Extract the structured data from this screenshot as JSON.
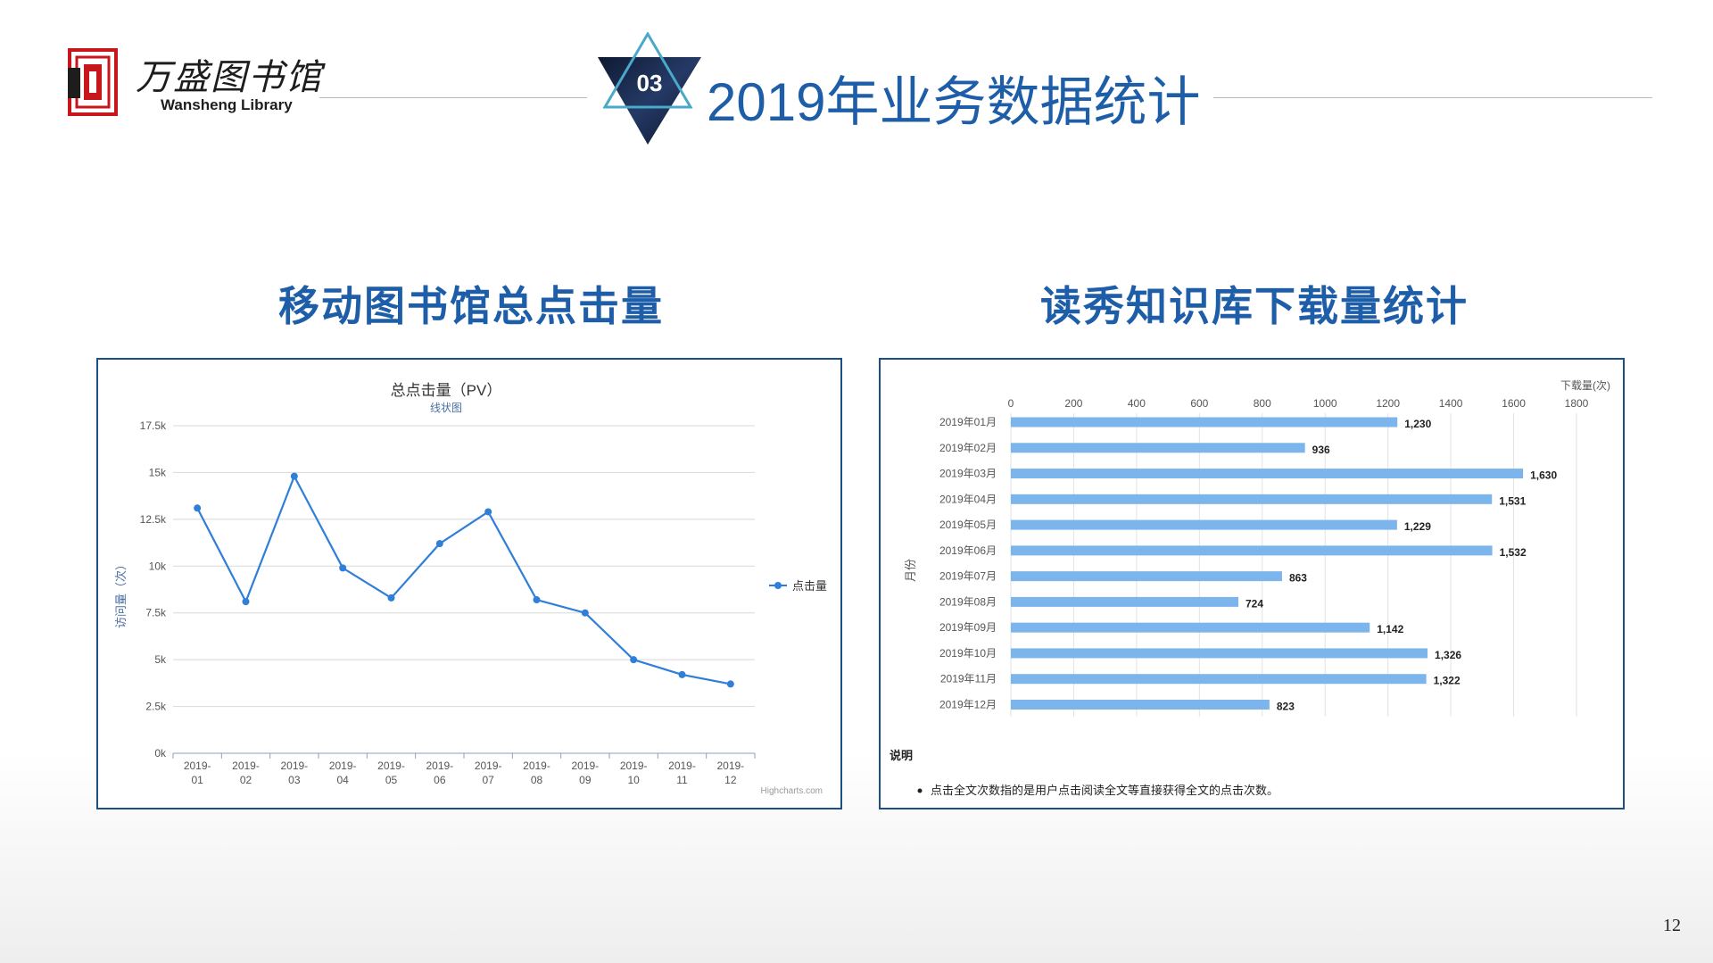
{
  "header": {
    "logo_cn": "万盛图书馆",
    "logo_en": "Wansheng Library",
    "section_number": "03",
    "title": "2019年业务数据统计"
  },
  "colors": {
    "title_blue": "#1e5ea8",
    "line_series": "#2f7ed8",
    "bar_series": "#7cb5ec",
    "panel_border": "#1c4f86",
    "seal_red": "#c8161d"
  },
  "left_section_title": "移动图书馆总点击量",
  "right_section_title": "读秀知识库下载量统计",
  "chart_data": [
    {
      "type": "line",
      "title": "总点击量（PV）",
      "subtitle": "线状图",
      "ylabel": "访问量（次）",
      "xlabel": "",
      "ylim": [
        0,
        17500
      ],
      "yticks": [
        "0k",
        "2.5k",
        "5k",
        "7.5k",
        "10k",
        "12.5k",
        "15k",
        "17.5k"
      ],
      "categories": [
        "2019-01",
        "2019-02",
        "2019-03",
        "2019-04",
        "2019-05",
        "2019-06",
        "2019-07",
        "2019-08",
        "2019-09",
        "2019-10",
        "2019-11",
        "2019-12"
      ],
      "series": [
        {
          "name": "点击量",
          "values": [
            13100,
            8100,
            14800,
            9900,
            8300,
            11200,
            12900,
            8200,
            7500,
            5000,
            4200,
            3700
          ]
        }
      ],
      "legend_position": "right",
      "grid": true,
      "credit": "Highcharts.com"
    },
    {
      "type": "bar",
      "orientation": "horizontal",
      "xlabel": "月份",
      "ylabel": "下载量(次)",
      "xlim": [
        0,
        1800
      ],
      "xticks": [
        "0",
        "200",
        "400",
        "600",
        "800",
        "1000",
        "1200",
        "1400",
        "1600",
        "1800"
      ],
      "categories": [
        "2019年01月",
        "2019年02月",
        "2019年03月",
        "2019年04月",
        "2019年05月",
        "2019年06月",
        "2019年07月",
        "2019年08月",
        "2019年09月",
        "2019年10月",
        "2019年11月",
        "2019年12月"
      ],
      "values": [
        1230,
        936,
        1630,
        1531,
        1229,
        1532,
        863,
        724,
        1142,
        1326,
        1322,
        823
      ],
      "value_labels": [
        "1,230",
        "936",
        "1,630",
        "1,531",
        "1,229",
        "1,532",
        "863",
        "724",
        "1,142",
        "1,326",
        "1,322",
        "823"
      ],
      "note_title": "说明",
      "note_text": "点击全文次数指的是用户点击阅读全文等直接获得全文的点击次数。",
      "grid": true
    }
  ],
  "page_number": "12"
}
